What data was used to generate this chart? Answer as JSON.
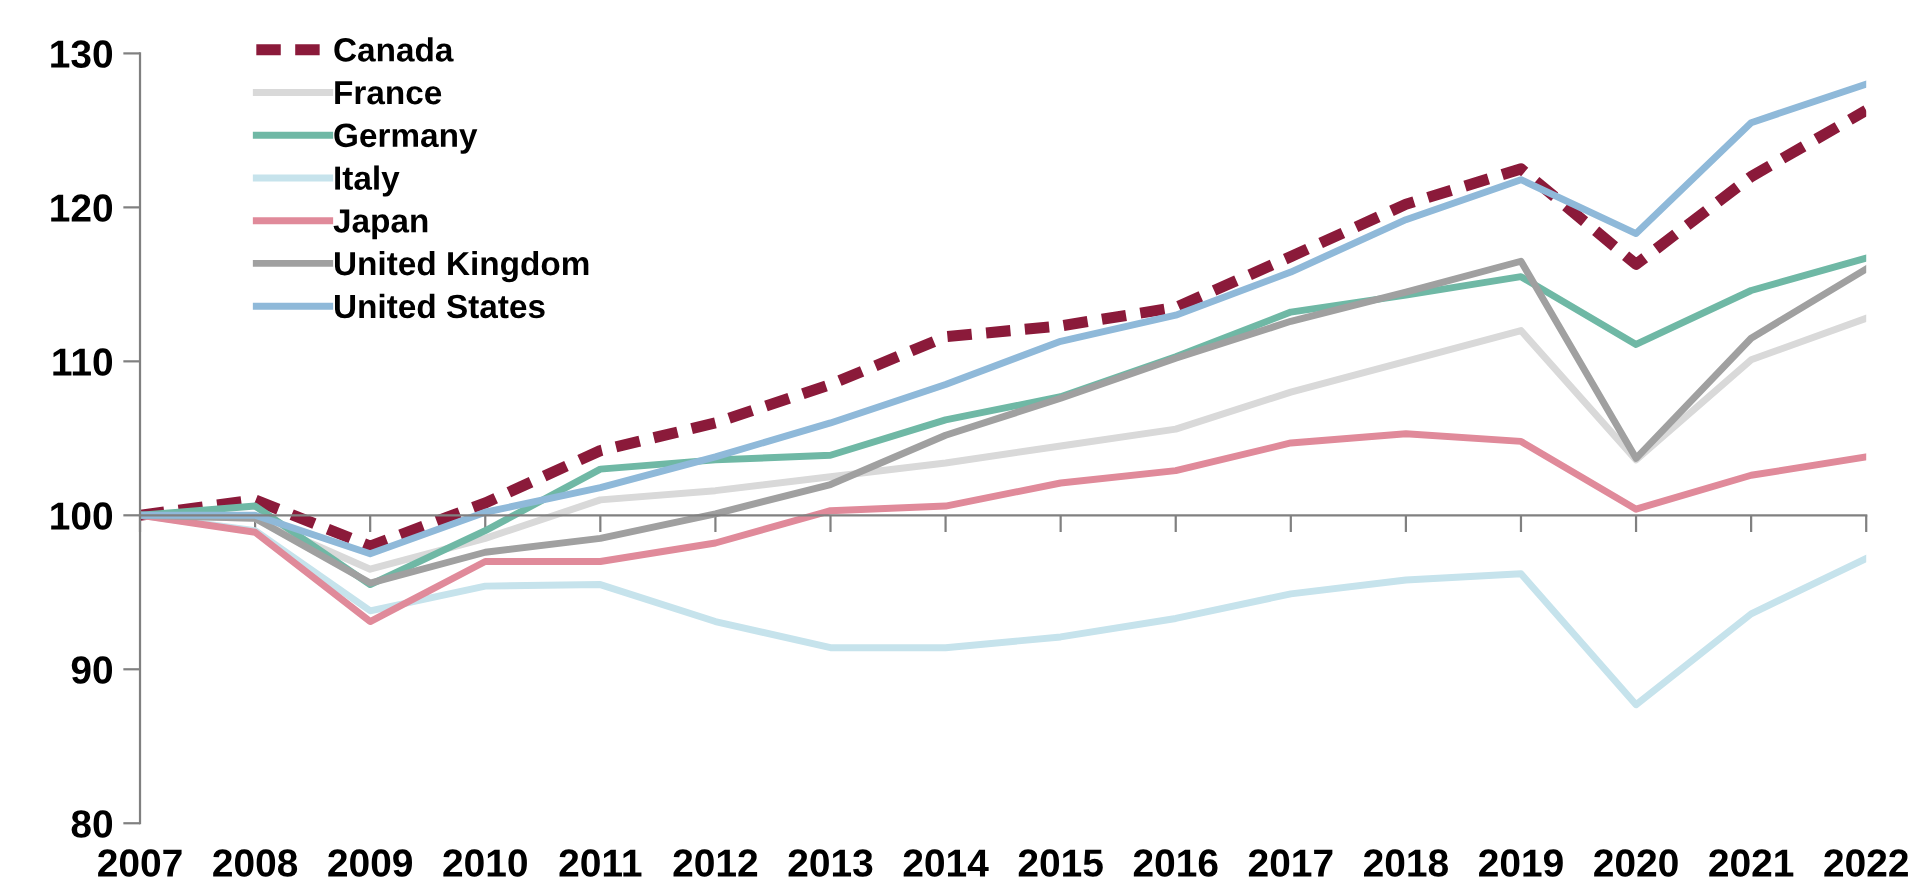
{
  "chart_data": {
    "type": "line",
    "categories": [
      "2007",
      "2008",
      "2009",
      "2010",
      "2011",
      "2012",
      "2013",
      "2014",
      "2015",
      "2016",
      "2017",
      "2018",
      "2019",
      "2020",
      "2021",
      "2022"
    ],
    "series": [
      {
        "name": "Canada",
        "color": "#8b1a3a",
        "line_style": "dashed",
        "values": [
          100,
          101,
          98,
          100.8,
          104.2,
          106,
          108.5,
          111.6,
          112.3,
          113.5,
          116.8,
          120.2,
          122.5,
          116.3,
          122,
          126.3
        ]
      },
      {
        "name": "France",
        "color": "#d9d9d9",
        "values": [
          100,
          99.8,
          96.5,
          98.5,
          101,
          101.6,
          102.5,
          103.4,
          104.5,
          105.6,
          108,
          110,
          112,
          103.6,
          110.1,
          112.8
        ]
      },
      {
        "name": "Germany",
        "color": "#6fb8a5",
        "values": [
          100,
          100.6,
          95.5,
          99,
          103,
          103.6,
          103.9,
          106.2,
          107.7,
          110.3,
          113.2,
          114.3,
          115.5,
          111.1,
          114.6,
          116.7
        ]
      },
      {
        "name": "Italy",
        "color": "#c6e3ec",
        "values": [
          100,
          99,
          93.8,
          95.4,
          95.5,
          93.1,
          91.4,
          91.4,
          92.1,
          93.3,
          94.9,
          95.8,
          96.2,
          87.7,
          93.6,
          97.2
        ]
      },
      {
        "name": "Japan",
        "color": "#e08a9a",
        "values": [
          100,
          98.9,
          93.1,
          97,
          97,
          98.2,
          100.3,
          100.6,
          102.1,
          102.9,
          104.7,
          105.3,
          104.8,
          100.4,
          102.6,
          103.8
        ]
      },
      {
        "name": "United Kingdom",
        "color": "#a0a0a0",
        "values": [
          100,
          99.8,
          95.6,
          97.6,
          98.5,
          100.1,
          102,
          105.2,
          107.6,
          110.2,
          112.6,
          114.5,
          116.5,
          103.7,
          111.5,
          116
        ]
      },
      {
        "name": "United States",
        "color": "#8fb9d9",
        "values": [
          100,
          100,
          97.5,
          100.2,
          101.8,
          103.8,
          106,
          108.5,
          111.3,
          113,
          115.8,
          119.2,
          121.8,
          118.3,
          125.5,
          128
        ]
      }
    ],
    "ylim": [
      80,
      130
    ],
    "yticks": [
      80,
      90,
      100,
      110,
      120,
      130
    ],
    "ref_lines": [
      {
        "axis": "y",
        "value": 100,
        "color": "#808080"
      }
    ],
    "line_style": "solid",
    "marker": "none",
    "grid": false,
    "legend": "top left"
  }
}
